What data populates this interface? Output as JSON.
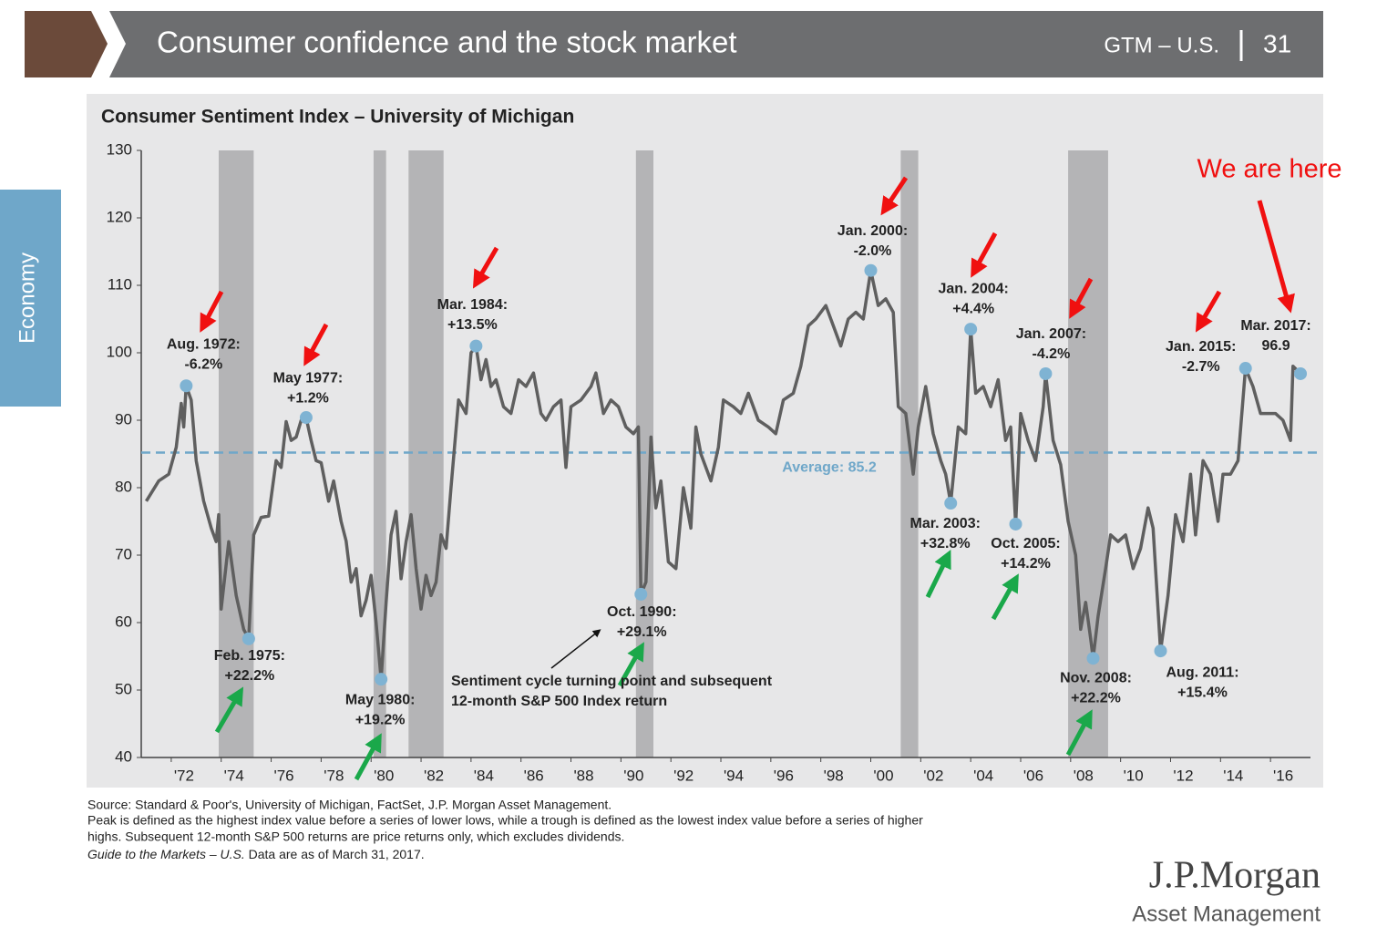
{
  "header": {
    "title": "Consumer confidence and the stock market",
    "section": "GTM – U.S.",
    "page": "31",
    "tab": "Economy"
  },
  "chart_data": {
    "type": "line",
    "title": "Consumer Sentiment Index – University of Michigan",
    "color": "#5f5f5f",
    "x": [
      1971.0,
      1971.5,
      1971.9,
      1972.2,
      1972.4,
      1972.5,
      1972.6,
      1972.8,
      1973.0,
      1973.3,
      1973.6,
      1973.8,
      1973.9,
      1974.0,
      1974.3,
      1974.6,
      1974.9,
      1975.1,
      1975.3,
      1975.6,
      1975.9,
      1976.2,
      1976.4,
      1976.6,
      1976.8,
      1977.0,
      1977.2,
      1977.4,
      1977.6,
      1977.8,
      1978.0,
      1978.3,
      1978.5,
      1978.8,
      1979.0,
      1979.2,
      1979.4,
      1979.6,
      1979.8,
      1980.0,
      1980.2,
      1980.4,
      1980.6,
      1980.8,
      1981.0,
      1981.2,
      1981.4,
      1981.6,
      1981.8,
      1982.0,
      1982.2,
      1982.4,
      1982.6,
      1982.8,
      1983.0,
      1983.2,
      1983.5,
      1983.8,
      1984.0,
      1984.2,
      1984.4,
      1984.6,
      1984.8,
      1985.0,
      1985.3,
      1985.6,
      1985.9,
      1986.2,
      1986.5,
      1986.8,
      1987.0,
      1987.3,
      1987.6,
      1987.8,
      1988.0,
      1988.4,
      1988.8,
      1989.0,
      1989.3,
      1989.6,
      1989.9,
      1990.2,
      1990.5,
      1990.7,
      1990.8,
      1991.0,
      1991.2,
      1991.4,
      1991.6,
      1991.9,
      1992.2,
      1992.5,
      1992.8,
      1993.0,
      1993.2,
      1993.6,
      1993.9,
      1994.1,
      1994.5,
      1994.8,
      1995.1,
      1995.5,
      1995.9,
      1996.2,
      1996.5,
      1996.9,
      1997.2,
      1997.5,
      1997.8,
      1998.2,
      1998.5,
      1998.8,
      1999.1,
      1999.4,
      1999.7,
      2000.0,
      2000.3,
      2000.6,
      2000.9,
      2001.1,
      2001.4,
      2001.7,
      2001.9,
      2002.2,
      2002.5,
      2002.8,
      2003.0,
      2003.2,
      2003.5,
      2003.8,
      2004.0,
      2004.2,
      2004.5,
      2004.8,
      2005.1,
      2005.4,
      2005.6,
      2005.8,
      2006.0,
      2006.3,
      2006.6,
      2006.9,
      2007.0,
      2007.3,
      2007.6,
      2007.9,
      2008.2,
      2008.4,
      2008.6,
      2008.8,
      2008.9,
      2009.1,
      2009.4,
      2009.6,
      2009.9,
      2010.2,
      2010.5,
      2010.8,
      2011.1,
      2011.3,
      2011.6,
      2011.9,
      2012.2,
      2012.5,
      2012.8,
      2013.0,
      2013.3,
      2013.6,
      2013.9,
      2014.1,
      2014.4,
      2014.7,
      2015.0,
      2015.3,
      2015.6,
      2015.9,
      2016.2,
      2016.5,
      2016.8,
      2016.9,
      2017.2
    ],
    "values": [
      78,
      81,
      82,
      86,
      92.5,
      89,
      95.1,
      93,
      84,
      78,
      74,
      72,
      76,
      62,
      72,
      64,
      59,
      57.6,
      73,
      75.6,
      75.8,
      84,
      83,
      89.8,
      87,
      87.5,
      90,
      90.4,
      87,
      84,
      83.7,
      78,
      81,
      75,
      72.1,
      66,
      68,
      61,
      63.3,
      67,
      60,
      51.6,
      63,
      73,
      76.5,
      66.5,
      72,
      76,
      68,
      62,
      67,
      64,
      66,
      73,
      71,
      80,
      93,
      91,
      100,
      101,
      96,
      99,
      95,
      96,
      92,
      91,
      96,
      95,
      97,
      91,
      90,
      92,
      93,
      83,
      92,
      93,
      95,
      97,
      91,
      93,
      92,
      89,
      88,
      89,
      64.2,
      66,
      87.5,
      77,
      81,
      69,
      68,
      80,
      74,
      89,
      85,
      81,
      86,
      93,
      92,
      91,
      94,
      90,
      89,
      88,
      93,
      94,
      98,
      104,
      105,
      107,
      104,
      101,
      105,
      106,
      105,
      112.2,
      107,
      108,
      106,
      92,
      91,
      82,
      89,
      95,
      88,
      84,
      82,
      77.7,
      89,
      88,
      103.5,
      94,
      95,
      92,
      96,
      87,
      89,
      74.6,
      91,
      87,
      84,
      92,
      96.9,
      87,
      83.4,
      75,
      70,
      59,
      63,
      57.6,
      54.7,
      61,
      68,
      73,
      72,
      73,
      68,
      71,
      77,
      74,
      55.8,
      64,
      76,
      72,
      82,
      73,
      84,
      82,
      75,
      82,
      82,
      84,
      97.7,
      95,
      91,
      91,
      91,
      90,
      87,
      98,
      96.9
    ],
    "xlim": [
      1970.8,
      2017.6
    ],
    "ylim": [
      40,
      130
    ],
    "xticks": [
      {
        "value": 1972,
        "label": "'72"
      },
      {
        "value": 1974,
        "label": "'74"
      },
      {
        "value": 1976,
        "label": "'76"
      },
      {
        "value": 1978,
        "label": "'78"
      },
      {
        "value": 1980,
        "label": "'80"
      },
      {
        "value": 1982,
        "label": "'82"
      },
      {
        "value": 1984,
        "label": "'84"
      },
      {
        "value": 1986,
        "label": "'86"
      },
      {
        "value": 1988,
        "label": "'88"
      },
      {
        "value": 1990,
        "label": "'90"
      },
      {
        "value": 1992,
        "label": "'92"
      },
      {
        "value": 1994,
        "label": "'94"
      },
      {
        "value": 1996,
        "label": "'96"
      },
      {
        "value": 1998,
        "label": "'98"
      },
      {
        "value": 2000,
        "label": "'00"
      },
      {
        "value": 2002,
        "label": "'02"
      },
      {
        "value": 2004,
        "label": "'04"
      },
      {
        "value": 2006,
        "label": "'06"
      },
      {
        "value": 2008,
        "label": "'08"
      },
      {
        "value": 2010,
        "label": "'10"
      },
      {
        "value": 2012,
        "label": "'12"
      },
      {
        "value": 2014,
        "label": "'14"
      },
      {
        "value": 2016,
        "label": "'16"
      }
    ],
    "yticks": [
      40,
      50,
      60,
      70,
      80,
      90,
      100,
      110,
      120,
      130
    ],
    "grid": false,
    "recessions": [
      [
        1973.9,
        1975.3
      ],
      [
        1980.1,
        1980.6
      ],
      [
        1981.5,
        1982.9
      ],
      [
        1990.6,
        1991.3
      ],
      [
        2001.2,
        2001.9
      ],
      [
        2007.9,
        2009.5
      ]
    ],
    "recession_color": "#b4b4b6",
    "average": {
      "value": 85.2,
      "label": "Average: 85.2",
      "color": "#6fa7c9"
    },
    "point_color": "#7fb3d3",
    "points": [
      {
        "x": 1972.6,
        "y": 95.1,
        "label": "Aug. 1972:",
        "note": "-6.2%"
      },
      {
        "x": 1975.1,
        "y": 57.6,
        "label": "Feb. 1975:",
        "note": "+22.2%"
      },
      {
        "x": 1977.4,
        "y": 90.4,
        "label": "May 1977:",
        "note": "+1.2%"
      },
      {
        "x": 1980.4,
        "y": 51.6,
        "label": "May 1980:",
        "note": "+19.2%"
      },
      {
        "x": 1984.2,
        "y": 101,
        "label": "Mar. 1984:",
        "note": "+13.5%"
      },
      {
        "x": 1990.8,
        "y": 64.2,
        "label": "Oct. 1990:",
        "note": "+29.1%"
      },
      {
        "x": 2000.0,
        "y": 112.2,
        "label": "Jan. 2000:",
        "note": "-2.0%"
      },
      {
        "x": 2003.2,
        "y": 77.7,
        "label": "Mar. 2003:",
        "note": "+32.8%"
      },
      {
        "x": 2004.0,
        "y": 103.5,
        "label": "Jan. 2004:",
        "note": "+4.4%"
      },
      {
        "x": 2005.8,
        "y": 74.6,
        "label": "Oct. 2005:",
        "note": "+14.2%"
      },
      {
        "x": 2007.0,
        "y": 96.9,
        "label": "Jan. 2007:",
        "note": "-4.2%"
      },
      {
        "x": 2008.9,
        "y": 54.7,
        "label": "Nov. 2008:",
        "note": "+22.2%"
      },
      {
        "x": 2011.6,
        "y": 55.8,
        "label": "Aug. 2011:",
        "note": "+15.4%"
      },
      {
        "x": 2015.0,
        "y": 97.7,
        "label": "Jan. 2015:",
        "note": "-2.7%"
      },
      {
        "x": 2017.2,
        "y": 96.9,
        "label": "Mar. 2017:",
        "note": "96.9"
      }
    ],
    "annotation": [
      "Sentiment cycle turning point and subsequent",
      "12-month S&P 500 Index return"
    ],
    "callout": "We are here"
  },
  "footer": {
    "source": "Source: Standard & Poor's, University of Michigan, FactSet, J.P. Morgan Asset Management.",
    "notes": [
      "Peak is defined as the highest index value before a series of lower lows, while a trough is defined as the lowest index value before a series of higher",
      "highs. Subsequent 12-month S&P 500 returns are price returns only, which excludes dividends."
    ],
    "guide": "Guide to the Markets – U.S.",
    "asof": " Data are as of March 31, 2017.",
    "logo": "J.P.Morgan",
    "logo_sub": "Asset Management"
  }
}
